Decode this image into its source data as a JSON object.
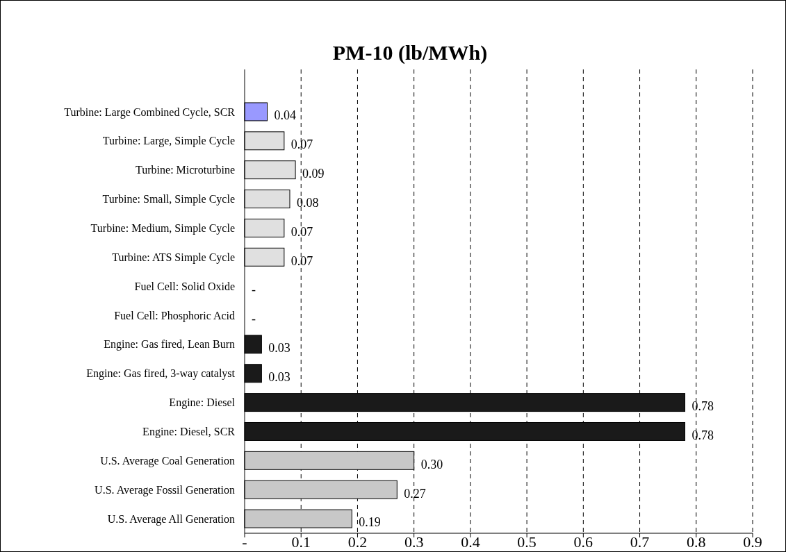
{
  "chart_data": {
    "type": "bar",
    "orientation": "horizontal",
    "title": "PM-10 (lb/MWh)",
    "categories": [
      "Turbine: Large Combined Cycle, SCR",
      "Turbine: Large, Simple Cycle",
      "Turbine: Microturbine",
      "Turbine: Small, Simple Cycle",
      "Turbine: Medium, Simple Cycle",
      "Turbine: ATS Simple Cycle",
      "Fuel Cell: Solid Oxide",
      "Fuel Cell: Phosphoric Acid",
      "Engine: Gas fired, Lean Burn",
      "Engine: Gas fired, 3-way catalyst",
      "Engine: Diesel",
      "Engine: Diesel, SCR",
      "U.S. Average Coal Generation",
      "U.S. Average Fossil Generation",
      "U.S. Average All Generation"
    ],
    "values": [
      0.04,
      0.07,
      0.09,
      0.08,
      0.07,
      0.07,
      0,
      0,
      0.03,
      0.03,
      0.78,
      0.78,
      0.3,
      0.27,
      0.19
    ],
    "value_labels": [
      "0.04",
      "0.07",
      "0.09",
      "0.08",
      "0.07",
      "0.07",
      "-",
      "-",
      "0.03",
      "0.03",
      "0.78",
      "0.78",
      "0.30",
      "0.27",
      "0.19"
    ],
    "colors": [
      "#9999ff",
      "#e0e0e0",
      "#e0e0e0",
      "#e0e0e0",
      "#e0e0e0",
      "#e0e0e0",
      "#e0e0e0",
      "#e0e0e0",
      "#1a1a1a",
      "#1a1a1a",
      "#1a1a1a",
      "#1a1a1a",
      "#c8c8c8",
      "#c8c8c8",
      "#c8c8c8"
    ],
    "xlim": [
      0,
      0.9
    ],
    "xticks": [
      {
        "value": 0,
        "label": "-"
      },
      0.1,
      0.2,
      0.3,
      0.4,
      0.5,
      0.6,
      0.7,
      0.8,
      0.9
    ],
    "grid": "x",
    "line_style": "dashed"
  }
}
